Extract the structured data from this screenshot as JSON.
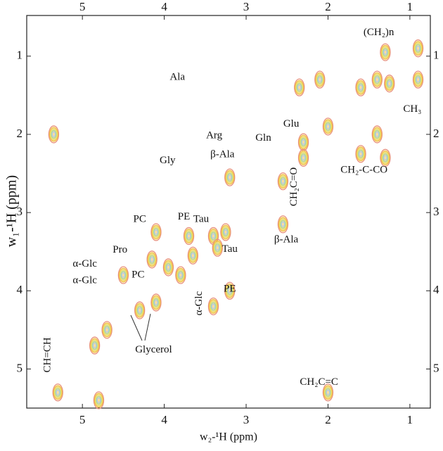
{
  "chart_data": {
    "type": "contour",
    "x_label": "w₂-¹H  (ppm)",
    "y_label": "w₁-¹H  (ppm)",
    "xlim": [
      5.68,
      0.75
    ],
    "ylim": [
      0.48,
      5.5
    ],
    "xticks": [
      5,
      4,
      3,
      2,
      1
    ],
    "yticks": [
      1,
      2,
      3,
      4,
      5
    ],
    "contour_colors": [
      "#e8907a",
      "#f2c040",
      "#e8e070",
      "#a8d8a0",
      "#b0c8e8"
    ],
    "peaks": {
      "x": [
        0.9,
        0.9,
        1.3,
        1.4,
        1.25,
        1.6,
        2.1,
        2.35,
        2.0,
        2.3,
        1.4,
        1.6,
        1.3,
        2.3,
        2.55,
        3.2,
        3.25,
        3.4,
        3.35,
        2.55,
        3.8,
        3.95,
        4.1,
        4.3,
        4.15,
        4.1,
        4.5,
        3.4,
        3.2,
        4.7,
        4.85,
        5.3,
        5.35,
        2.0,
        4.8,
        3.7,
        3.65
      ],
      "y": [
        0.9,
        1.3,
        0.95,
        1.3,
        1.35,
        1.4,
        1.3,
        1.4,
        1.9,
        2.1,
        2.0,
        2.25,
        2.3,
        2.3,
        2.6,
        2.55,
        3.25,
        3.3,
        3.45,
        3.15,
        3.8,
        3.7,
        4.15,
        4.25,
        3.6,
        3.25,
        3.8,
        4.2,
        4.0,
        4.5,
        4.7,
        5.3,
        2.0,
        5.3,
        5.4,
        3.3,
        3.55
      ]
    },
    "annotations": [
      {
        "text": "(CH₂)n",
        "x": 1.38,
        "y": 0.7
      },
      {
        "text": "CH₃",
        "x": 0.97,
        "y": 1.68
      },
      {
        "text": "Ala",
        "x": 3.84,
        "y": 1.27
      },
      {
        "text": "Arg",
        "x": 3.39,
        "y": 2.02
      },
      {
        "text": "Gly",
        "x": 3.96,
        "y": 2.34
      },
      {
        "text": "β-Ala",
        "x": 3.29,
        "y": 2.26
      },
      {
        "text": "Gln",
        "x": 2.79,
        "y": 2.05
      },
      {
        "text": "Glu",
        "x": 2.45,
        "y": 1.87
      },
      {
        "text": "CH₂-C-CO",
        "x": 1.56,
        "y": 2.46
      },
      {
        "text": "CH₂C=O",
        "x": 2.41,
        "y": 2.67,
        "rotate": -90
      },
      {
        "text": "PC",
        "x": 4.3,
        "y": 3.09
      },
      {
        "text": "PE",
        "x": 3.76,
        "y": 3.06
      },
      {
        "text": "Tau",
        "x": 3.55,
        "y": 3.09
      },
      {
        "text": "Tau",
        "x": 3.2,
        "y": 3.47
      },
      {
        "text": "β-Ala",
        "x": 2.51,
        "y": 3.35
      },
      {
        "text": "Pro",
        "x": 4.54,
        "y": 3.48
      },
      {
        "text": "α-Glc",
        "x": 4.97,
        "y": 3.66
      },
      {
        "text": "α-Glc",
        "x": 4.97,
        "y": 3.87
      },
      {
        "text": "PC",
        "x": 4.32,
        "y": 3.8
      },
      {
        "text": "α-Glc",
        "x": 3.57,
        "y": 4.16,
        "rotate": -90
      },
      {
        "text": "PE",
        "x": 3.2,
        "y": 3.98
      },
      {
        "text": "Glycerol",
        "x": 4.13,
        "y": 4.76
      },
      {
        "text": "CH=CH",
        "x": 5.42,
        "y": 4.82,
        "rotate": -90
      },
      {
        "text": "CH₂C=C",
        "x": 2.11,
        "y": 5.17
      }
    ]
  }
}
